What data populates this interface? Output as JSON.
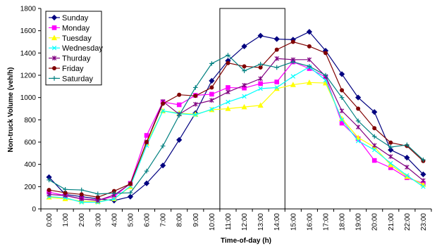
{
  "chart_data": {
    "type": "line",
    "xlabel": "Time-of-day (h)",
    "ylabel": "Non-truck Volume (veh/h)",
    "ylim": [
      0,
      1800
    ],
    "yticks": [
      "0",
      "200",
      "400",
      "600",
      "800",
      "1000",
      "1200",
      "1400",
      "1600",
      "1800"
    ],
    "categories": [
      "0:00",
      "1:00",
      "2:00",
      "3:00",
      "4:00",
      "5:00",
      "6:00",
      "7:00",
      "8:00",
      "9:00",
      "10:00",
      "11:00",
      "12:00",
      "13:00",
      "14:00",
      "15:00",
      "16:00",
      "17:00",
      "18:00",
      "19:00",
      "20:00",
      "21:00",
      "22:00",
      "23:00"
    ],
    "grid": false,
    "legend_position": "top-left",
    "highlight_range": [
      "11:00",
      "14:00"
    ],
    "series": [
      {
        "name": "Sunday",
        "color": "#000080",
        "marker": "diamond",
        "values": [
          285,
          130,
          110,
          90,
          75,
          110,
          230,
          390,
          620,
          860,
          1150,
          1330,
          1460,
          1555,
          1525,
          1520,
          1590,
          1420,
          1210,
          1000,
          870,
          530,
          460,
          310
        ]
      },
      {
        "name": "Monday",
        "color": "#FF00FF",
        "marker": "square",
        "values": [
          150,
          120,
          90,
          80,
          110,
          230,
          660,
          960,
          935,
          1020,
          1030,
          1090,
          1085,
          1125,
          1140,
          1320,
          1260,
          1185,
          770,
          630,
          435,
          370,
          280,
          230
        ]
      },
      {
        "name": "Tuesday",
        "color": "#FFFF00",
        "marker": "triangle",
        "values": [
          105,
          90,
          70,
          65,
          90,
          200,
          590,
          880,
          860,
          850,
          890,
          900,
          915,
          930,
          1080,
          1115,
          1135,
          1130,
          810,
          640,
          555,
          395,
          290,
          220
        ]
      },
      {
        "name": "Wednesday",
        "color": "#00FFFF",
        "marker": "x",
        "values": [
          110,
          100,
          60,
          60,
          90,
          205,
          570,
          880,
          855,
          845,
          895,
          960,
          1010,
          1080,
          1090,
          1190,
          1275,
          1155,
          800,
          610,
          530,
          410,
          300,
          200
        ]
      },
      {
        "name": "Thurday",
        "color": "#800080",
        "marker": "star",
        "values": [
          130,
          120,
          90,
          75,
          125,
          225,
          600,
          965,
          850,
          940,
          975,
          1050,
          1110,
          1170,
          1350,
          1340,
          1340,
          1190,
          880,
          735,
          570,
          470,
          375,
          255
        ]
      },
      {
        "name": "Friday",
        "color": "#800000",
        "marker": "circle",
        "values": [
          170,
          145,
          130,
          105,
          160,
          225,
          600,
          945,
          1025,
          1015,
          1090,
          1310,
          1280,
          1270,
          1430,
          1500,
          1460,
          1400,
          1065,
          900,
          725,
          595,
          565,
          430
        ]
      },
      {
        "name": "Saturday",
        "color": "#008080",
        "marker": "plus",
        "values": [
          260,
          175,
          170,
          135,
          140,
          145,
          340,
          565,
          840,
          1090,
          1305,
          1380,
          1240,
          1300,
          1270,
          1320,
          1280,
          1200,
          1000,
          790,
          650,
          555,
          575,
          440
        ]
      }
    ]
  }
}
